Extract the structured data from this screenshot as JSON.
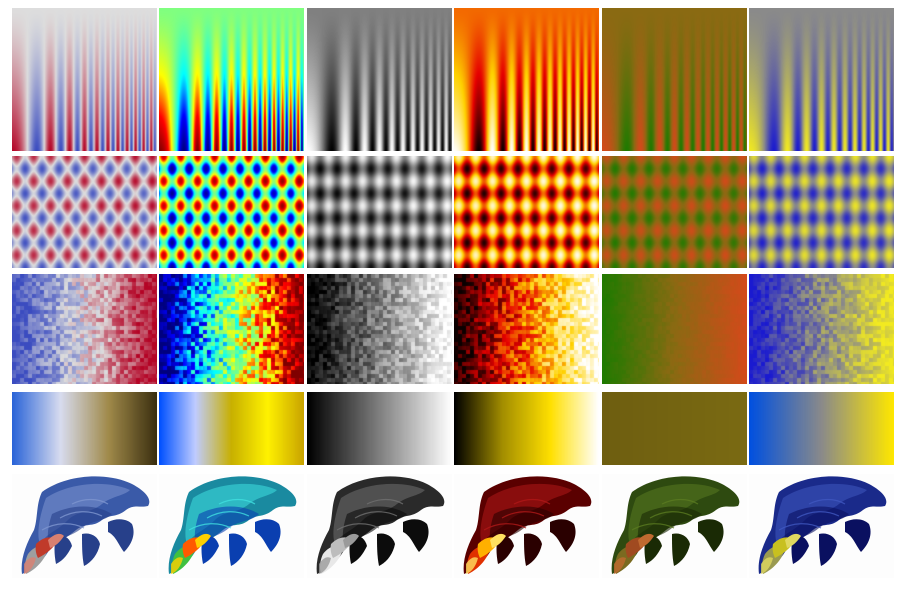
{
  "figure": {
    "description_free": true,
    "colormaps": [
      {
        "name": "coolwarm",
        "stops": [
          "#3b4cc0",
          "#dddddd",
          "#b40426"
        ]
      },
      {
        "name": "jet",
        "stops": [
          "#00007f",
          "#0000ff",
          "#00ffff",
          "#80ff80",
          "#ffff00",
          "#ff0000",
          "#7f0000"
        ]
      },
      {
        "name": "gray",
        "stops": [
          "#000000",
          "#ffffff"
        ]
      },
      {
        "name": "hot",
        "stops": [
          "#0b0000",
          "#e60000",
          "#ffd200",
          "#ffffff"
        ]
      },
      {
        "name": "green-red",
        "stops": [
          "#1f7a00",
          "#8a6a12",
          "#d34a1a"
        ]
      },
      {
        "name": "blue-yellow",
        "stops": [
          "#1a1ad0",
          "#8a8a8a",
          "#f2ea20"
        ]
      }
    ],
    "bar_colormaps": [
      {
        "name": "blue-gold",
        "stops": [
          "#2a64d8",
          "#d8dcef",
          "#a08a4a",
          "#3b2f10"
        ]
      },
      {
        "name": "blue-yellow-bright",
        "stops": [
          "#0050ff",
          "#c0ccff",
          "#c8b000",
          "#fff200",
          "#c9a400"
        ]
      },
      {
        "name": "gray",
        "stops": [
          "#000000",
          "#ffffff"
        ]
      },
      {
        "name": "black-yellow",
        "stops": [
          "#000000",
          "#a38e00",
          "#ffe000",
          "#ffffff"
        ]
      },
      {
        "name": "olive",
        "stops": [
          "#6e5e10",
          "#7a6a12"
        ]
      },
      {
        "name": "blue-yellow",
        "stops": [
          "#0050e0",
          "#8a8a8a",
          "#ffe800"
        ]
      }
    ],
    "rows": [
      "stripes",
      "eggbox",
      "noisy-ramp",
      "colorbar",
      "surface"
    ]
  }
}
